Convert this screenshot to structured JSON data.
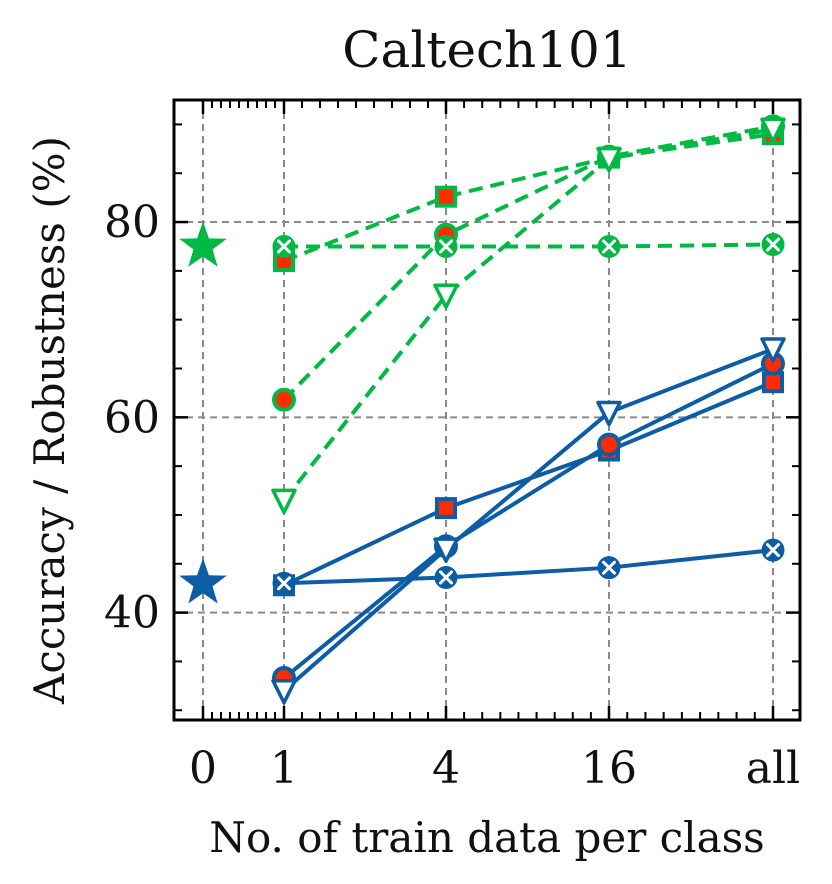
{
  "chart_data": {
    "type": "line",
    "title": "Caltech101",
    "xlabel": "No. of train data per class",
    "ylabel": "Accuracy / Robustness (%)",
    "categories": [
      "0",
      "1",
      "4",
      "16",
      "all"
    ],
    "ylim": [
      29,
      92.5
    ],
    "yticks": [
      40,
      60,
      80
    ],
    "grid": true,
    "colors": {
      "green": "#00b945",
      "blue": "#0c5da5",
      "marker_fill": "#ff2c00"
    },
    "star_points": [
      {
        "group": "green",
        "x": "0",
        "y": 77.5
      },
      {
        "group": "blue",
        "x": "0",
        "y": 43
      }
    ],
    "series": [
      {
        "group": "green",
        "marker": "square",
        "style": "dashed",
        "x": [
          "1",
          "4",
          "16",
          "all"
        ],
        "values": [
          76.0,
          82.6,
          86.6,
          89.0
        ]
      },
      {
        "group": "green",
        "marker": "circle",
        "style": "dashed",
        "x": [
          "1",
          "4",
          "16",
          "all"
        ],
        "values": [
          61.8,
          78.7,
          86.7,
          89.8
        ]
      },
      {
        "group": "green",
        "marker": "triangle",
        "style": "dashed",
        "x": [
          "1",
          "4",
          "16",
          "all"
        ],
        "values": [
          51.5,
          72.5,
          86.5,
          89.5
        ]
      },
      {
        "group": "green",
        "marker": "x",
        "style": "dashed",
        "x": [
          "1",
          "4",
          "16",
          "all"
        ],
        "values": [
          77.5,
          77.5,
          77.5,
          77.7
        ]
      },
      {
        "group": "blue",
        "marker": "square",
        "style": "solid",
        "x": [
          "1",
          "4",
          "16",
          "all"
        ],
        "values": [
          42.8,
          50.7,
          56.6,
          63.6
        ]
      },
      {
        "group": "blue",
        "marker": "circle",
        "style": "solid",
        "x": [
          "1",
          "4",
          "16",
          "all"
        ],
        "values": [
          33.3,
          46.8,
          57.2,
          65.5
        ]
      },
      {
        "group": "blue",
        "marker": "triangle",
        "style": "solid",
        "x": [
          "1",
          "4",
          "16",
          "all"
        ],
        "values": [
          32.0,
          46.5,
          60.5,
          67.0
        ]
      },
      {
        "group": "blue",
        "marker": "x",
        "style": "solid",
        "x": [
          "1",
          "4",
          "16",
          "all"
        ],
        "values": [
          43.0,
          43.6,
          44.6,
          46.4
        ]
      }
    ]
  }
}
